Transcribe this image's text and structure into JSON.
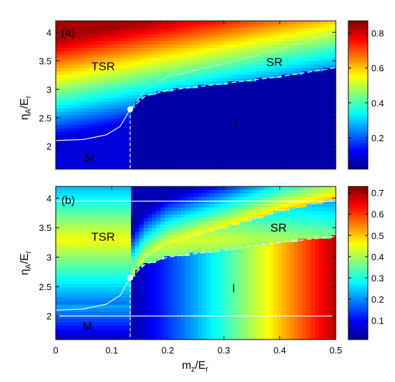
{
  "chart_data": [
    {
      "type": "heatmap",
      "panel_label": "(a)",
      "xlabel": "m_z/E_r",
      "ylabel": "η_A/E_r",
      "xlim": [
        0,
        0.5
      ],
      "ylim": [
        1.6,
        4.2
      ],
      "y_ticks": [
        "2",
        "2.5",
        "3",
        "3.5",
        "4"
      ],
      "colorbar": {
        "range": [
          0.02,
          0.87
        ],
        "ticks": [
          "0.2",
          "0.4",
          "0.6",
          "0.8"
        ]
      },
      "regions": [
        "TSR",
        "SR",
        "I",
        "M"
      ],
      "critical_point": {
        "x": 0.133,
        "y": 2.65
      },
      "boundaries": {
        "TSR_M": [
          [
            0,
            2.1
          ],
          [
            0.05,
            2.12
          ],
          [
            0.09,
            2.2
          ],
          [
            0.115,
            2.35
          ],
          [
            0.133,
            2.65
          ]
        ],
        "TSR_SR": [
          [
            0.133,
            2.65
          ],
          [
            0.16,
            3.0
          ],
          [
            0.2,
            3.22
          ],
          [
            0.3,
            3.45
          ],
          [
            0.4,
            3.7
          ],
          [
            0.5,
            4.0
          ]
        ],
        "SR_I": [
          [
            0.133,
            2.65
          ],
          [
            0.16,
            2.88
          ],
          [
            0.2,
            2.98
          ],
          [
            0.3,
            3.1
          ],
          [
            0.4,
            3.22
          ],
          [
            0.5,
            3.38
          ]
        ],
        "M_I": [
          [
            0.133,
            2.65
          ],
          [
            0.133,
            1.6
          ]
        ]
      }
    },
    {
      "type": "heatmap",
      "panel_label": "(b)",
      "xlabel": "m_z/E_r",
      "ylabel": "η_A/E_r",
      "xlim": [
        0,
        0.5
      ],
      "ylim": [
        1.6,
        4.2
      ],
      "x_ticks": [
        "0",
        "0.1",
        "0.2",
        "0.3",
        "0.4",
        "0.5"
      ],
      "y_ticks": [
        "2",
        "2.5",
        "3",
        "3.5",
        "4"
      ],
      "colorbar": {
        "range": [
          0.01,
          0.73
        ],
        "ticks": [
          "0.1",
          "0.2",
          "0.3",
          "0.4",
          "0.5",
          "0.6",
          "0.7"
        ]
      },
      "regions": [
        "TSR",
        "SR",
        "I",
        "M"
      ],
      "critical_point": {
        "x": 0.133,
        "y": 2.65
      },
      "reference_lines_y": [
        3.95,
        2.0
      ],
      "boundaries": {
        "TSR_M": [
          [
            0,
            2.1
          ],
          [
            0.05,
            2.12
          ],
          [
            0.09,
            2.2
          ],
          [
            0.115,
            2.35
          ],
          [
            0.133,
            2.65
          ]
        ],
        "TSR_SR": [
          [
            0.133,
            2.65
          ],
          [
            0.16,
            3.0
          ],
          [
            0.2,
            3.25
          ],
          [
            0.3,
            3.5
          ],
          [
            0.4,
            3.78
          ],
          [
            0.5,
            3.98
          ]
        ],
        "SR_I": [
          [
            0.133,
            2.65
          ],
          [
            0.16,
            2.88
          ],
          [
            0.2,
            3.0
          ],
          [
            0.3,
            3.12
          ],
          [
            0.4,
            3.25
          ],
          [
            0.5,
            3.35
          ]
        ],
        "M_I": [
          [
            0.133,
            2.65
          ],
          [
            0.133,
            1.6
          ]
        ]
      }
    }
  ]
}
